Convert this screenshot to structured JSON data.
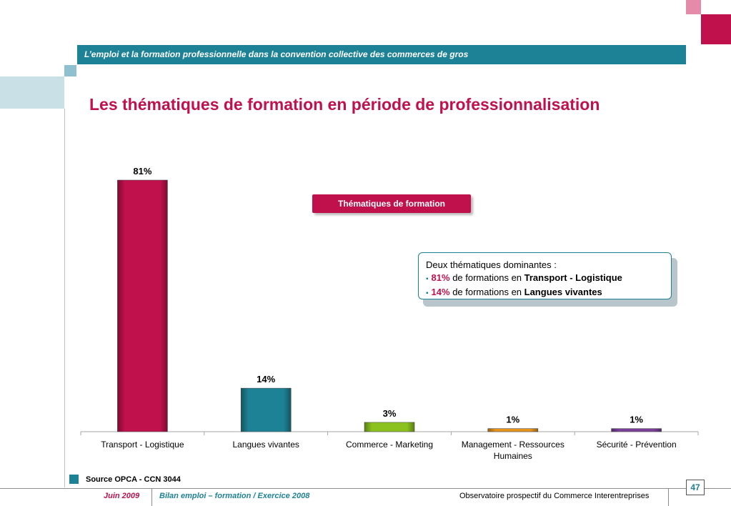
{
  "header": {
    "title": "L’emploi et la formation professionnelle dans la convention collective des commerces de gros"
  },
  "page": {
    "title": "Les thématiques de formation en période de professionnalisation"
  },
  "legend": {
    "label": "Thématiques de formation"
  },
  "note": {
    "intro": "Deux thématiques dominantes :",
    "bullet_glyph": "▪",
    "item1_pct": "81%",
    "item1_mid": " de formations en ",
    "item1_theme": "Transport - Logistique",
    "item2_pct": "14%",
    "item2_mid": " de formations en ",
    "item2_theme": "Langues vivantes"
  },
  "source": {
    "text": "Source OPCA - CCN 3044"
  },
  "footer": {
    "date": "Juin 2009",
    "report": "Bilan emploi – formation / Exercice 2008",
    "organization": "Observatoire prospectif du Commerce Interentreprises",
    "page_number": "47"
  },
  "colors": {
    "crimson": "#c0114c",
    "teal": "#1e8296",
    "lime": "#8cc21f",
    "orange": "#e8941a",
    "purple": "#7b3f9a"
  },
  "chart_data": {
    "type": "bar",
    "title": "Les thématiques de formation en période de professionnalisation",
    "categories": [
      [
        "Transport - Logistique"
      ],
      [
        "Langues vivantes"
      ],
      [
        "Commerce - Marketing"
      ],
      [
        "Management - Ressources",
        "Humaines"
      ],
      [
        "Sécurité - Prévention"
      ]
    ],
    "values": [
      81,
      14,
      3,
      1,
      1
    ],
    "value_labels": [
      "81%",
      "14%",
      "3%",
      "1%",
      "1%"
    ],
    "bar_colors": [
      "#c0114c",
      "#1e8296",
      "#8cc21f",
      "#e8941a",
      "#7b3f9a"
    ],
    "ylim": [
      0,
      81
    ],
    "legend": [
      "Thématiques de formation"
    ],
    "legend_position": "top-center",
    "grid": false
  }
}
